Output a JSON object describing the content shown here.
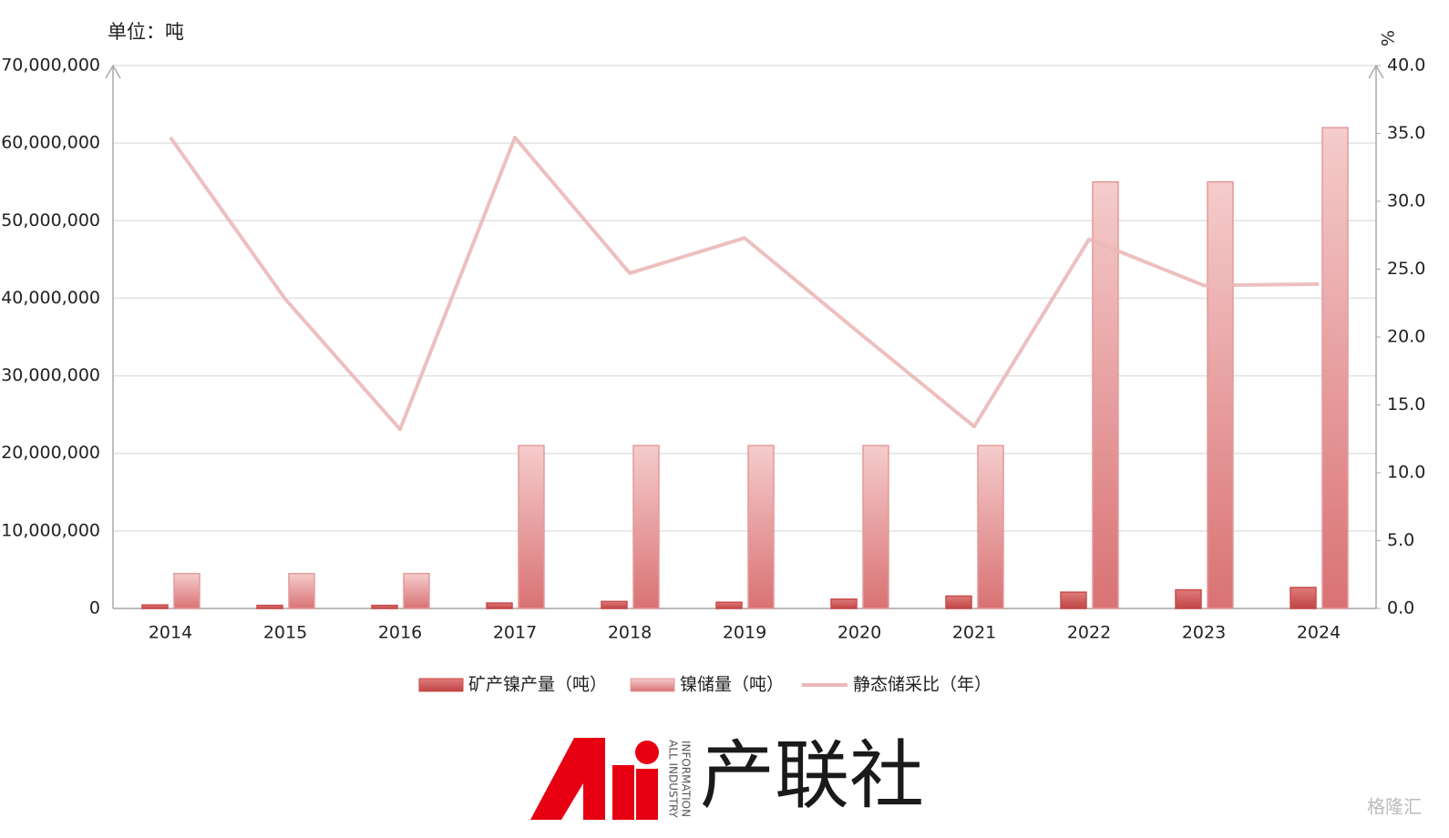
{
  "chart_data": {
    "type": "bar_line",
    "unit_label": "单位：吨",
    "y2_unit_label": "%",
    "categories": [
      "2014",
      "2015",
      "2016",
      "2017",
      "2018",
      "2019",
      "2020",
      "2021",
      "2022",
      "2023",
      "2024"
    ],
    "series": [
      {
        "name": "矿产镍产量（吨）",
        "type": "bar",
        "color": "#c94b4b",
        "values": [
          450000,
          400000,
          400000,
          700000,
          900000,
          800000,
          1200000,
          1600000,
          2100000,
          2400000,
          2700000
        ]
      },
      {
        "name": "镍储量（吨）",
        "type": "bar",
        "color": "#e39a9a",
        "values": [
          4500000,
          4500000,
          4500000,
          21000000,
          21000000,
          21000000,
          21000000,
          21000000,
          55000000,
          55000000,
          62000000
        ]
      },
      {
        "name": "静态储采比（年）",
        "type": "line",
        "axis": "y2",
        "color": "#ebb8b8",
        "values": [
          34.7,
          22.8,
          13.2,
          34.7,
          24.7,
          27.3,
          20.3,
          13.4,
          27.2,
          23.8,
          23.9
        ]
      }
    ],
    "ylim": [
      0,
      70000000
    ],
    "yticks": [
      0,
      {
        "value": 10000000,
        "label": "10,000,000"
      },
      {
        "value": 20000000,
        "label": "20,000,000"
      },
      {
        "value": 30000000,
        "label": "30,000,000"
      },
      {
        "value": 40000000,
        "label": "40,000,000"
      },
      {
        "value": 50000000,
        "label": "50,000,000"
      },
      {
        "value": 60000000,
        "label": "60,000,000"
      },
      {
        "value": 70000000,
        "label": "70,000,000"
      }
    ],
    "y2lim": [
      0,
      40
    ],
    "y2ticks": [
      {
        "value": 0,
        "label": "0.0"
      },
      {
        "value": 5,
        "label": "5.0"
      },
      {
        "value": 10,
        "label": "10.0"
      },
      {
        "value": 15,
        "label": "15.0"
      },
      {
        "value": 20,
        "label": "20.0"
      },
      {
        "value": 25,
        "label": "25.0"
      },
      {
        "value": 30,
        "label": "30.0"
      },
      {
        "value": 35,
        "label": "35.0"
      },
      {
        "value": 40,
        "label": "40.0"
      }
    ],
    "grid": true,
    "legend": "bottom"
  },
  "logo": {
    "name": "产联社",
    "tagline_1": "ALL INDUSTRY",
    "tagline_2": "INFORMATION",
    "watermark": "格隆汇"
  }
}
